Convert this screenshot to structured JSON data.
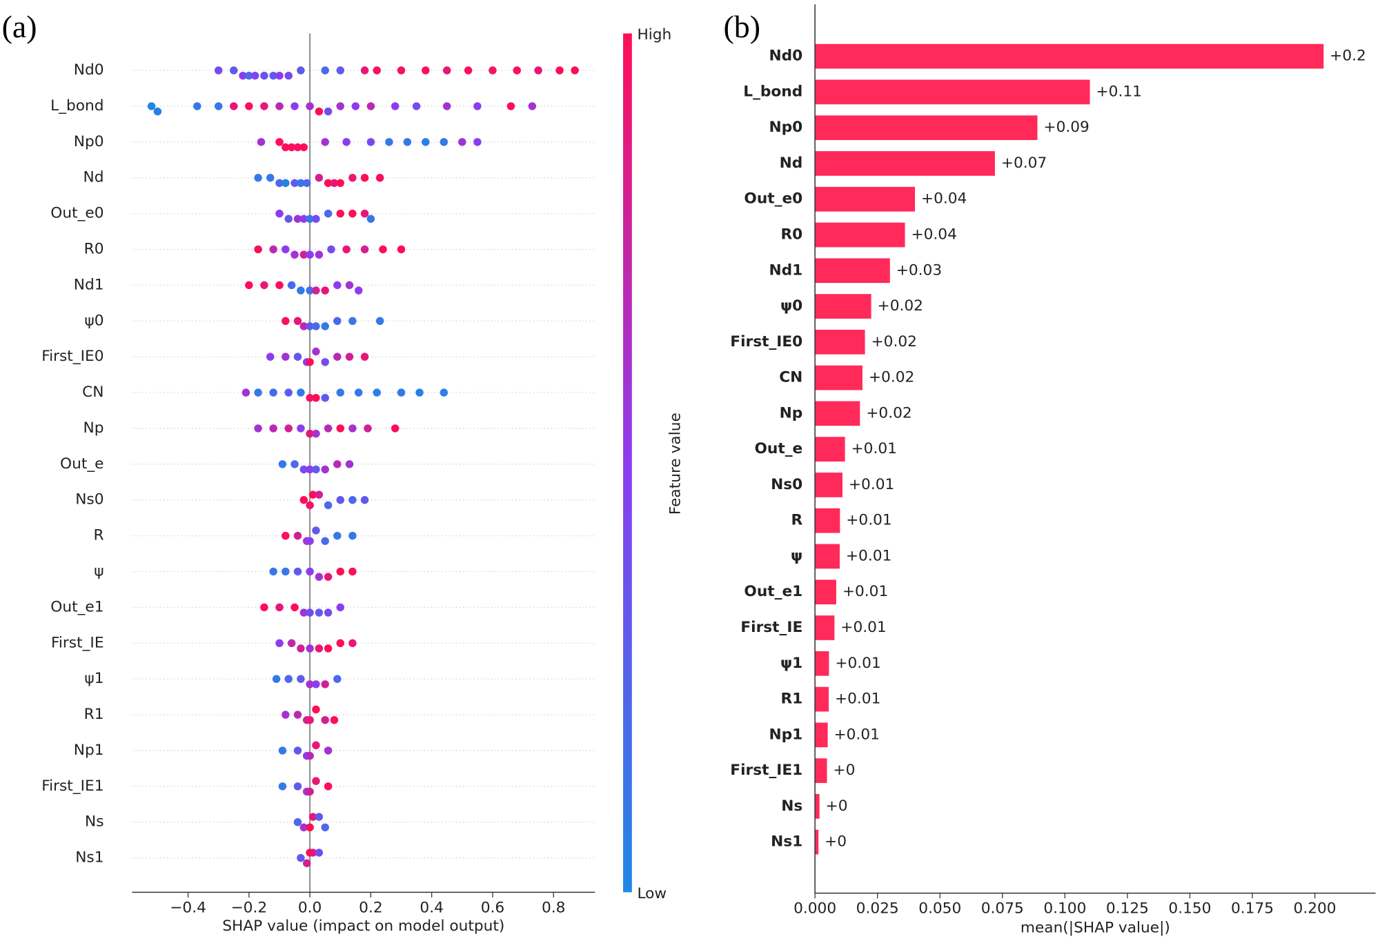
{
  "chart_data": [
    {
      "type": "beeswarm",
      "panel_label": "(a)",
      "categories": [
        "Nd0",
        "L_bond",
        "Np0",
        "Nd",
        "Out_e0",
        "R0",
        "Nd1",
        "ψ0",
        "First_IE0",
        "CN",
        "Np",
        "Out_e",
        "Ns0",
        "R",
        "ψ",
        "Out_e1",
        "First_IE",
        "ψ1",
        "R1",
        "Np1",
        "First_IE1",
        "Ns",
        "Ns1"
      ],
      "points": [
        [
          [
            -0.3,
            0.4
          ],
          [
            -0.25,
            0.3
          ],
          [
            -0.22,
            0.5
          ],
          [
            -0.2,
            0.2
          ],
          [
            -0.18,
            0.45
          ],
          [
            -0.15,
            0.35
          ],
          [
            -0.12,
            0.3
          ],
          [
            -0.1,
            0.5
          ],
          [
            -0.07,
            0.4
          ],
          [
            -0.03,
            0.3
          ],
          [
            0.05,
            0.2
          ],
          [
            0.1,
            0.3
          ],
          [
            0.18,
            0.9
          ],
          [
            0.22,
            1
          ],
          [
            0.3,
            0.95
          ],
          [
            0.38,
            1
          ],
          [
            0.45,
            0.9
          ],
          [
            0.52,
            1
          ],
          [
            0.6,
            0.95
          ],
          [
            0.68,
            1
          ],
          [
            0.75,
            0.9
          ],
          [
            0.82,
            1
          ],
          [
            0.87,
            1
          ]
        ],
        [
          [
            -0.52,
            0
          ],
          [
            -0.5,
            0.05
          ],
          [
            -0.37,
            0.1
          ],
          [
            -0.3,
            0.1
          ],
          [
            -0.25,
            0.9
          ],
          [
            -0.2,
            1
          ],
          [
            -0.15,
            0.9
          ],
          [
            -0.1,
            0.7
          ],
          [
            -0.05,
            0.5
          ],
          [
            0,
            0.6
          ],
          [
            0.03,
            1
          ],
          [
            0.06,
            0.4
          ],
          [
            0.1,
            0.6
          ],
          [
            0.15,
            0.5
          ],
          [
            0.2,
            0.7
          ],
          [
            0.28,
            0.5
          ],
          [
            0.35,
            0.4
          ],
          [
            0.45,
            0.6
          ],
          [
            0.55,
            0.5
          ],
          [
            0.66,
            1
          ],
          [
            0.73,
            0.6
          ]
        ],
        [
          [
            -0.16,
            0.6
          ],
          [
            -0.1,
            1
          ],
          [
            -0.08,
            1
          ],
          [
            -0.06,
            1
          ],
          [
            -0.04,
            0.95
          ],
          [
            -0.02,
            1
          ],
          [
            0.05,
            0.6
          ],
          [
            0.12,
            0.5
          ],
          [
            0.2,
            0.4
          ],
          [
            0.26,
            0.1
          ],
          [
            0.32,
            0.1
          ],
          [
            0.38,
            0.05
          ],
          [
            0.44,
            0.1
          ],
          [
            0.5,
            0.6
          ],
          [
            0.55,
            0.5
          ]
        ],
        [
          [
            -0.17,
            0.1
          ],
          [
            -0.13,
            0.1
          ],
          [
            -0.1,
            0.2
          ],
          [
            -0.08,
            0.05
          ],
          [
            -0.05,
            0.3
          ],
          [
            -0.03,
            0.1
          ],
          [
            -0.01,
            0.2
          ],
          [
            0.03,
            0.8
          ],
          [
            0.06,
            1
          ],
          [
            0.08,
            0.9
          ],
          [
            0.1,
            1
          ],
          [
            0.14,
            0.9
          ],
          [
            0.18,
            1
          ],
          [
            0.23,
            1
          ]
        ],
        [
          [
            -0.1,
            0.5
          ],
          [
            -0.07,
            0.3
          ],
          [
            -0.04,
            0.6
          ],
          [
            -0.02,
            0.5
          ],
          [
            0,
            0.1
          ],
          [
            0.02,
            0.4
          ],
          [
            0.06,
            0.2
          ],
          [
            0.1,
            1
          ],
          [
            0.14,
            1
          ],
          [
            0.18,
            0.9
          ],
          [
            0.2,
            0.1
          ]
        ],
        [
          [
            -0.17,
            1
          ],
          [
            -0.12,
            0.7
          ],
          [
            -0.08,
            0.5
          ],
          [
            -0.05,
            0.6
          ],
          [
            -0.02,
            0.8
          ],
          [
            0,
            0.5
          ],
          [
            0.03,
            0.6
          ],
          [
            0.07,
            0.4
          ],
          [
            0.12,
            0.9
          ],
          [
            0.18,
            0.8
          ],
          [
            0.24,
            1
          ],
          [
            0.3,
            1
          ]
        ],
        [
          [
            -0.2,
            1
          ],
          [
            -0.15,
            0.9
          ],
          [
            -0.1,
            1
          ],
          [
            -0.06,
            0.2
          ],
          [
            -0.03,
            0.1
          ],
          [
            0,
            0.15
          ],
          [
            0.02,
            0.8
          ],
          [
            0.05,
            0.9
          ],
          [
            0.09,
            0.5
          ],
          [
            0.13,
            0.6
          ],
          [
            0.16,
            0.5
          ]
        ],
        [
          [
            -0.08,
            1
          ],
          [
            -0.04,
            0.9
          ],
          [
            -0.02,
            0.7
          ],
          [
            0,
            0.3
          ],
          [
            0.02,
            0.2
          ],
          [
            0.05,
            0.1
          ],
          [
            0.09,
            0.2
          ],
          [
            0.14,
            0.1
          ],
          [
            0.23,
            0.1
          ]
        ],
        [
          [
            -0.13,
            0.5
          ],
          [
            -0.08,
            0.6
          ],
          [
            -0.04,
            0.3
          ],
          [
            -0.01,
            0.5
          ],
          [
            0,
            1
          ],
          [
            0.02,
            0.6
          ],
          [
            0.05,
            0.4
          ],
          [
            0.09,
            0.7
          ],
          [
            0.13,
            0.8
          ],
          [
            0.18,
            0.9
          ]
        ],
        [
          [
            -0.21,
            0.6
          ],
          [
            -0.17,
            0.1
          ],
          [
            -0.12,
            0.2
          ],
          [
            -0.07,
            0.3
          ],
          [
            -0.03,
            0.1
          ],
          [
            0,
            0.95
          ],
          [
            0.02,
            1
          ],
          [
            0.05,
            0.3
          ],
          [
            0.1,
            0.1
          ],
          [
            0.16,
            0.1
          ],
          [
            0.22,
            0.05
          ],
          [
            0.3,
            0.1
          ],
          [
            0.36,
            0.05
          ],
          [
            0.44,
            0.05
          ]
        ],
        [
          [
            -0.17,
            0.6
          ],
          [
            -0.12,
            0.7
          ],
          [
            -0.07,
            0.8
          ],
          [
            -0.03,
            0.5
          ],
          [
            0,
            0.9
          ],
          [
            0.02,
            0.6
          ],
          [
            0.06,
            0.7
          ],
          [
            0.1,
            1
          ],
          [
            0.14,
            0.6
          ],
          [
            0.19,
            0.8
          ],
          [
            0.28,
            1
          ]
        ],
        [
          [
            -0.09,
            0.1
          ],
          [
            -0.05,
            0.2
          ],
          [
            -0.02,
            0.4
          ],
          [
            0,
            0.5
          ],
          [
            0.02,
            0.3
          ],
          [
            0.05,
            0.6
          ],
          [
            0.09,
            0.7
          ],
          [
            0.13,
            0.6
          ]
        ],
        [
          [
            -0.02,
            1
          ],
          [
            0,
            0.95
          ],
          [
            0.01,
            1
          ],
          [
            0.03,
            0.8
          ],
          [
            0.06,
            0.2
          ],
          [
            0.1,
            0.3
          ],
          [
            0.14,
            0.2
          ],
          [
            0.18,
            0.3
          ]
        ],
        [
          [
            -0.08,
            1
          ],
          [
            -0.04,
            0.8
          ],
          [
            -0.01,
            0.6
          ],
          [
            0,
            0.5
          ],
          [
            0.02,
            0.3
          ],
          [
            0.05,
            0.2
          ],
          [
            0.09,
            0.1
          ],
          [
            0.14,
            0.1
          ]
        ],
        [
          [
            -0.12,
            0.1
          ],
          [
            -0.08,
            0.1
          ],
          [
            -0.04,
            0.3
          ],
          [
            0,
            0.5
          ],
          [
            0.03,
            0.6
          ],
          [
            0.06,
            0.9
          ],
          [
            0.1,
            1
          ],
          [
            0.14,
            1
          ]
        ],
        [
          [
            -0.15,
            1
          ],
          [
            -0.1,
            0.9
          ],
          [
            -0.05,
            1
          ],
          [
            -0.02,
            0.6
          ],
          [
            0,
            0.4
          ],
          [
            0.03,
            0.3
          ],
          [
            0.06,
            0.4
          ],
          [
            0.1,
            0.5
          ]
        ],
        [
          [
            -0.1,
            0.5
          ],
          [
            -0.06,
            0.7
          ],
          [
            -0.03,
            0.8
          ],
          [
            0,
            0.6
          ],
          [
            0.03,
            0.9
          ],
          [
            0.06,
            1
          ],
          [
            0.1,
            1
          ],
          [
            0.14,
            0.9
          ]
        ],
        [
          [
            -0.11,
            0.1
          ],
          [
            -0.07,
            0.2
          ],
          [
            -0.03,
            0.3
          ],
          [
            0,
            0.6
          ],
          [
            0.02,
            0.5
          ],
          [
            0.05,
            0.8
          ],
          [
            0.09,
            0.2
          ]
        ],
        [
          [
            -0.08,
            0.6
          ],
          [
            -0.04,
            0.7
          ],
          [
            -0.01,
            0.8
          ],
          [
            0,
            0.9
          ],
          [
            0.02,
            1
          ],
          [
            0.05,
            0.8
          ],
          [
            0.08,
            1
          ]
        ],
        [
          [
            -0.09,
            0.1
          ],
          [
            -0.04,
            0.3
          ],
          [
            -0.01,
            0.5
          ],
          [
            0,
            0.7
          ],
          [
            0.02,
            0.9
          ],
          [
            0.06,
            0.6
          ]
        ],
        [
          [
            -0.09,
            0.1
          ],
          [
            -0.04,
            0.3
          ],
          [
            -0.01,
            0.6
          ],
          [
            0,
            0.8
          ],
          [
            0.02,
            0.9
          ],
          [
            0.06,
            1
          ]
        ],
        [
          [
            -0.04,
            0.2
          ],
          [
            -0.02,
            0.6
          ],
          [
            0,
            1
          ],
          [
            0.01,
            0.9
          ],
          [
            0.03,
            0.3
          ],
          [
            0.05,
            0.2
          ]
        ],
        [
          [
            -0.03,
            0.3
          ],
          [
            -0.01,
            0.8
          ],
          [
            0,
            1
          ],
          [
            0.01,
            0.9
          ],
          [
            0.03,
            0.4
          ]
        ]
      ],
      "xlim": [
        -0.584,
        0.936
      ],
      "xticks": [
        {
          "value": -0.4,
          "label": "−0.4"
        },
        {
          "value": -0.2,
          "label": "−0.2"
        },
        {
          "value": 0,
          "label": "0.0"
        },
        0.2,
        0.4,
        0.6,
        0.8
      ],
      "xlabel": "SHAP value (impact on model output)",
      "colorbar": {
        "high": "High",
        "low": "Low",
        "label": "Feature value",
        "colors": [
          "#1E88E5",
          "#8C3CF0",
          "#FF0D57"
        ]
      }
    },
    {
      "type": "barh",
      "panel_label": "(b)",
      "categories": [
        "Nd0",
        "L_bond",
        "Np0",
        "Nd",
        "Out_e0",
        "R0",
        "Nd1",
        "ψ0",
        "First_IE0",
        "CN",
        "Np",
        "Out_e",
        "Ns0",
        "R",
        "ψ",
        "Out_e1",
        "First_IE",
        "ψ1",
        "R1",
        "Np1",
        "First_IE1",
        "Ns",
        "Ns1"
      ],
      "values": [
        0.2035,
        0.11,
        0.089,
        0.072,
        0.04,
        0.036,
        0.03,
        0.0225,
        0.02,
        0.019,
        0.018,
        0.012,
        0.011,
        0.01,
        0.0099,
        0.0085,
        0.0078,
        0.0056,
        0.0055,
        0.0051,
        0.0048,
        0.0018,
        0.0014
      ],
      "value_labels": [
        "+0.2",
        "+0.11",
        "+0.09",
        "+0.07",
        "+0.04",
        "+0.04",
        "+0.03",
        "+0.02",
        "+0.02",
        "+0.02",
        "+0.02",
        "+0.01",
        "+0.01",
        "+0.01",
        "+0.01",
        "+0.01",
        "+0.01",
        "+0.01",
        "+0.01",
        "+0.01",
        "+0",
        "+0",
        "+0"
      ],
      "color": "#FF2A5A",
      "xlim": [
        0,
        0.2243
      ],
      "xticks": [
        {
          "value": 0,
          "label": "0.000"
        },
        0.025,
        {
          "value": 0.05,
          "label": "0.050"
        },
        0.075,
        {
          "value": 0.1,
          "label": "0.100"
        },
        0.125,
        {
          "value": 0.15,
          "label": "0.150"
        },
        0.175,
        {
          "value": 0.2,
          "label": "0.200"
        }
      ],
      "xlabel": "mean(|SHAP value|)"
    }
  ]
}
